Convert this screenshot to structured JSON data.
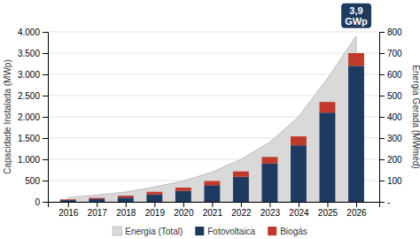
{
  "chart_data": {
    "type": "bar",
    "stacked": true,
    "grid": true,
    "legend": "bottom",
    "y_label": "Capacidade Instalada (MWp)",
    "y2_label": "Energia Gerada (MWméd)",
    "x": [
      2016,
      2017,
      2018,
      2019,
      2020,
      2021,
      2022,
      2023,
      2024,
      2025,
      2026
    ],
    "xlim": [
      2015.3,
      2026.8
    ],
    "xticks": [
      2016,
      2017,
      2018,
      2019,
      2020,
      2021,
      2022,
      2023,
      2024,
      2025,
      2026
    ],
    "ylim": [
      0,
      4000
    ],
    "yticks": [
      0,
      500,
      {
        "value": 1000,
        "label": "1.000"
      },
      {
        "value": 1500,
        "label": "1.500"
      },
      {
        "value": 2000,
        "label": "2.000"
      },
      {
        "value": 2500,
        "label": "2.500"
      },
      {
        "value": 3000,
        "label": "3.000"
      },
      {
        "value": 3500,
        "label": "3.500"
      },
      {
        "value": 4000,
        "label": "4.000"
      }
    ],
    "y2lim": [
      0,
      800
    ],
    "y2ticks": [
      {
        "value": 0,
        "label": "-"
      },
      100,
      200,
      300,
      400,
      500,
      600,
      700,
      800
    ],
    "series": [
      {
        "name": "Energia (Total)",
        "type": "area",
        "color": "#d9d9d9",
        "values": [
          100,
          160,
          230,
          350,
          490,
          700,
          1000,
          1400,
          2000,
          2900,
          3900
        ]
      },
      {
        "name": "Fotovoltaica",
        "type": "bar",
        "color": "#1e3a5f",
        "values": [
          40,
          65,
          100,
          175,
          255,
          390,
          590,
          900,
          1330,
          2100,
          3200
        ]
      },
      {
        "name": "Biogás",
        "type": "bar",
        "color": "#c0392b",
        "values": [
          18,
          28,
          45,
          60,
          80,
          100,
          125,
          155,
          210,
          250,
          300
        ]
      }
    ],
    "annotations": [
      {
        "text": "3,9\nGWp",
        "x": 2026,
        "color": "#1e3a5f"
      }
    ]
  }
}
